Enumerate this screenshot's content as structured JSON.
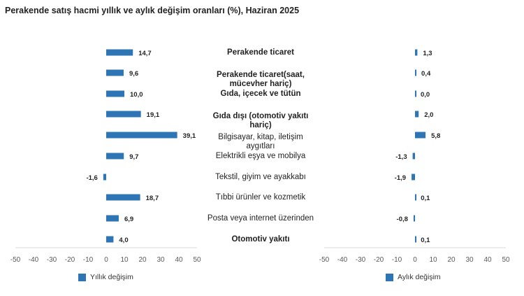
{
  "title": "Perakende satış hacmi yıllık ve aylık değişim oranları (%), Haziran 2025",
  "colors": {
    "bar": "#2E75B6",
    "axis": "#d9d9d9",
    "text": "#222222",
    "tick": "#595959"
  },
  "chart_data": [
    {
      "type": "bar",
      "orientation": "horizontal",
      "series": [
        {
          "name": "Yıllık değişim",
          "values": [
            14.7,
            9.6,
            10.0,
            19.1,
            39.1,
            9.7,
            -1.6,
            18.7,
            6.9,
            4.0
          ]
        }
      ],
      "value_labels": [
        "14,7",
        "9,6",
        "10,0",
        "19,1",
        "39,1",
        "9,7",
        "-1,6",
        "18,7",
        "6,9",
        "4,0"
      ],
      "xlim": [
        -50,
        50
      ],
      "ticks": [
        "-50",
        "-40",
        "-30",
        "-20",
        "-10",
        "0",
        "10",
        "20",
        "30",
        "40",
        "50"
      ],
      "legend_position": "bottom-left",
      "grid": false
    },
    {
      "type": "bar",
      "orientation": "horizontal",
      "series": [
        {
          "name": "Aylık değişim",
          "values": [
            1.3,
            0.4,
            0.0,
            2.0,
            5.8,
            -1.3,
            -1.9,
            0.1,
            -0.8,
            0.1
          ]
        }
      ],
      "value_labels": [
        "1,3",
        "0,4",
        "0,0",
        "2,0",
        "5,8",
        "-1,3",
        "-1,9",
        "0,1",
        "-0,8",
        "0,1"
      ],
      "xlim": [
        -50,
        50
      ],
      "ticks": [
        "-50",
        "-40",
        "-30",
        "-20",
        "-10",
        "0",
        "10",
        "20",
        "30",
        "40",
        "50"
      ],
      "legend_position": "bottom-left",
      "grid": false
    }
  ],
  "categories": [
    {
      "lines": [
        "Perakende ticaret"
      ],
      "bold": true
    },
    {
      "lines": [
        "Perakende ticaret(saat,",
        "mücevher hariç)"
      ],
      "bold": true
    },
    {
      "lines": [
        "Gıda, içecek ve tütün"
      ],
      "bold": true
    },
    {
      "lines": [
        "Gıda dışı (otomotiv yakıtı",
        "hariç)"
      ],
      "bold": true
    },
    {
      "lines": [
        "Bilgisayar, kitap, iletişim",
        "aygıtları"
      ],
      "bold": false
    },
    {
      "lines": [
        "Elektrikli eşya ve mobilya"
      ],
      "bold": false
    },
    {
      "lines": [
        "Tekstil, giyim ve ayakkabı"
      ],
      "bold": false
    },
    {
      "lines": [
        "Tıbbi ürünler ve kozmetik"
      ],
      "bold": false
    },
    {
      "lines": [
        "Posta veya internet üzerinden"
      ],
      "bold": false
    },
    {
      "lines": [
        "Otomotiv yakıtı"
      ],
      "bold": true
    }
  ]
}
